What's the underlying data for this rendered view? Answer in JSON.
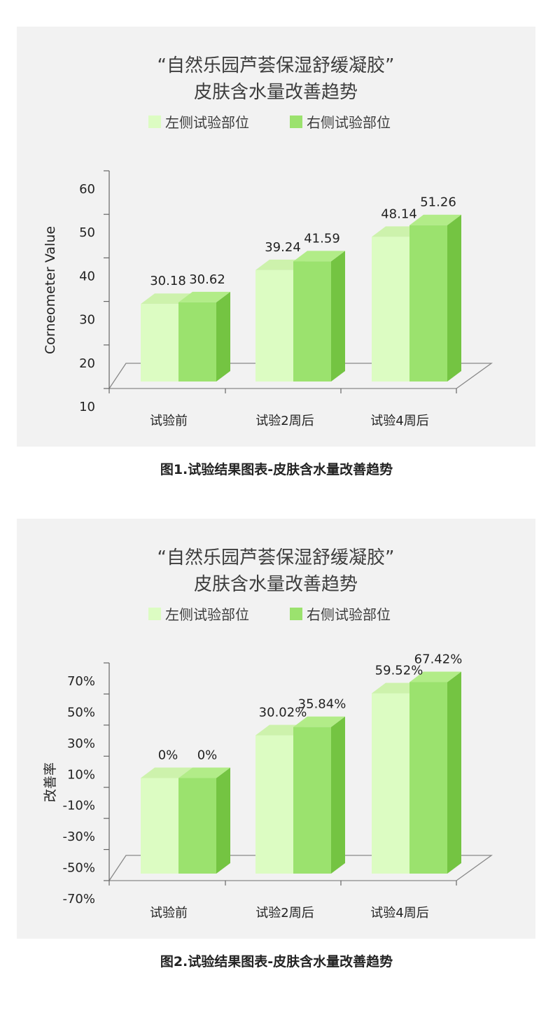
{
  "chart_data": [
    {
      "type": "bar",
      "title_lines": [
        "“自然乐园芦荟保湿舒缓凝胶”",
        "皮肤含水量改善趋势"
      ],
      "legend": [
        "左侧试验部位",
        "右侧试验部位"
      ],
      "legend_placement": "top",
      "categories": [
        "试验前",
        "试验2周后",
        "试验4周后"
      ],
      "series": [
        {
          "name": "左侧试验部位",
          "values": [
            30.18,
            39.24,
            48.14
          ],
          "labels": [
            "30.18",
            "39.24",
            "48.14"
          ]
        },
        {
          "name": "右侧试验部位",
          "values": [
            30.62,
            41.59,
            51.26
          ],
          "labels": [
            "30.62",
            "41.59",
            "51.26"
          ]
        }
      ],
      "xlabel": "",
      "ylabel": "Corneometer Value",
      "ylim": [
        10,
        60
      ],
      "yticks": [
        10,
        20,
        30,
        40,
        50,
        60
      ],
      "ytick_labels": [
        "10",
        "20",
        "30",
        "40",
        "50",
        "60"
      ],
      "grid": false,
      "colors": {
        "left": "#dcfcc2",
        "right": "#9be26e",
        "right_side": "#74c442",
        "right_top": "#b2ec88",
        "left_top": "#cdf2ac",
        "floor_line": "#888888"
      }
    },
    {
      "type": "bar",
      "title_lines": [
        "“自然乐园芦荟保湿舒缓凝胶”",
        "皮肤含水量改善趋势"
      ],
      "legend": [
        "左侧试验部位",
        "右侧试验部位"
      ],
      "legend_placement": "top",
      "categories": [
        "试验前",
        "试验2周后",
        "试验4周后"
      ],
      "series": [
        {
          "name": "左侧试验部位",
          "values": [
            0,
            30.02,
            59.52
          ],
          "labels": [
            "0%",
            "30.02%",
            "59.52%"
          ]
        },
        {
          "name": "右侧试验部位",
          "values": [
            0,
            35.84,
            67.42
          ],
          "labels": [
            "0%",
            "35.84%",
            "67.42%"
          ]
        }
      ],
      "xlabel": "",
      "ylabel": "改善率",
      "ylim": [
        -70,
        70
      ],
      "yticks": [
        -70,
        -50,
        -30,
        -10,
        10,
        30,
        50,
        70
      ],
      "ytick_labels": [
        "-70%",
        "-50%",
        "-30%",
        "-10%",
        "10%",
        "30%",
        "50%",
        "70%"
      ],
      "grid": false,
      "colors": {
        "left": "#dcfcc2",
        "right": "#9be26e",
        "right_side": "#74c442",
        "right_top": "#b2ec88",
        "left_top": "#cdf2ac",
        "floor_line": "#888888"
      }
    }
  ],
  "captions": [
    "图1.试验结果图表-皮肤含水量改善趋势",
    "图2.试验结果图表-皮肤含水量改善趋势"
  ]
}
